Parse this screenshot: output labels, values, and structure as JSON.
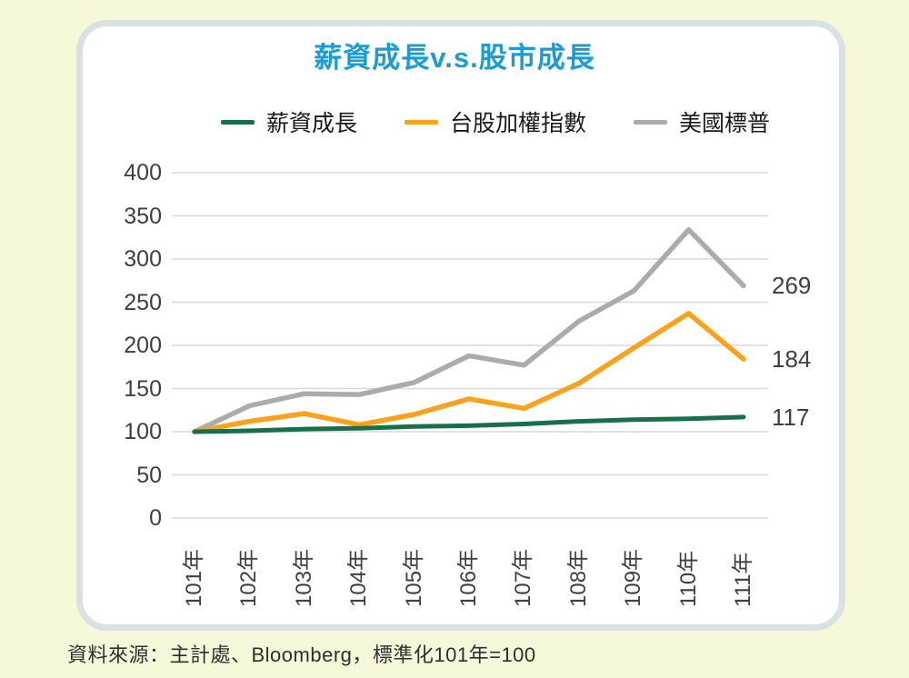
{
  "page": {
    "background_color": "#f5f9da",
    "card_background": "#ffffff",
    "card_border_color": "#d9e2e3"
  },
  "title": {
    "text": "薪資成長v.s.股市成長",
    "color": "#1b9bd3"
  },
  "legend": {
    "items": [
      {
        "label": "薪資成長",
        "color": "#17704b"
      },
      {
        "label": "台股加權指數",
        "color": "#faa21b"
      },
      {
        "label": "美國標普",
        "color": "#ababab"
      }
    ]
  },
  "chart_data": {
    "type": "line",
    "title": "薪資成長v.s.股市成長",
    "categories": [
      "101年",
      "102年",
      "103年",
      "104年",
      "105年",
      "106年",
      "107年",
      "108年",
      "109年",
      "110年",
      "111年"
    ],
    "series": [
      {
        "name": "美國標普",
        "color": "#ababab",
        "stroke_width": 5.5,
        "values": [
          100,
          130,
          144,
          143,
          157,
          188,
          177,
          228,
          263,
          334,
          269
        ],
        "end_label": "269"
      },
      {
        "name": "台股加權指數",
        "color": "#faa21b",
        "stroke_width": 5.5,
        "values": [
          100,
          112,
          121,
          108,
          120,
          138,
          127,
          156,
          197,
          237,
          184
        ],
        "end_label": "184"
      },
      {
        "name": "薪資成長",
        "color": "#17704b",
        "stroke_width": 5,
        "values": [
          100,
          101,
          103,
          104,
          106,
          107,
          109,
          112,
          114,
          115,
          117
        ],
        "end_label": "117"
      }
    ],
    "yticks": [
      400,
      350,
      300,
      250,
      200,
      150,
      100,
      50,
      0
    ],
    "ylim": [
      0,
      400
    ],
    "grid": true,
    "grid_color": "#d9d9d9",
    "axis_text_color": "#3f3f3f",
    "legend_position": "top",
    "normalization_note": "標準化101年=100"
  },
  "source": {
    "text": "資料來源：主計處、Bloomberg，標準化101年=100"
  }
}
